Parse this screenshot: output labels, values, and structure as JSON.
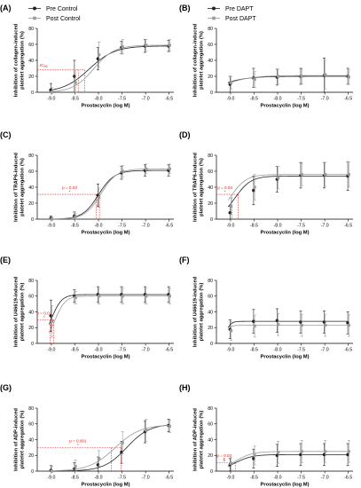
{
  "colors": {
    "pre": "#222222",
    "post": "#9a9a9a",
    "annotation": "#e02020"
  },
  "chart_data": [
    {
      "panel": "(A)",
      "type": "line",
      "xlabel": "Prostacyclin (log M)",
      "ylabel": [
        "Inhibition of collagen-induced",
        "platelet aggregation (%)"
      ],
      "xlim": [
        -9.3,
        -6.4
      ],
      "ylim": [
        0,
        80
      ],
      "xticks": [
        -9.0,
        -8.5,
        -8.0,
        -7.5,
        -7.0,
        -6.5
      ],
      "yticks": [
        0,
        20,
        40,
        60,
        80
      ],
      "legend": [
        "Pre Control",
        "Post Control"
      ],
      "series": [
        {
          "name": "Pre Control",
          "x": [
            -9.0,
            -8.5,
            -8.0,
            -7.5,
            -7.0,
            -6.5
          ],
          "y": [
            3,
            20,
            42,
            56,
            58,
            58
          ],
          "err": [
            8,
            20,
            14,
            8,
            8,
            7
          ],
          "fit": [
            58,
            -8.2,
            1.6
          ]
        },
        {
          "name": "Post Control",
          "x": [
            -9.0,
            -8.5,
            -8.0,
            -7.5,
            -7.0,
            -6.5
          ],
          "y": [
            0,
            12,
            47,
            57,
            59,
            59
          ],
          "err": [
            6,
            16,
            16,
            9,
            7,
            7
          ],
          "fit": [
            59,
            -8.1,
            2.0
          ]
        }
      ],
      "annotations": [
        {
          "type": "ic50",
          "label": "IC50",
          "y": 28,
          "x": [
            -8.43,
            -8.29
          ]
        }
      ]
    },
    {
      "panel": "(B)",
      "type": "line",
      "xlabel": "Prostacyclin (log M)",
      "ylabel": [
        "Inhibition of collagen-induced",
        "platelet aggregation (%)"
      ],
      "xlim": [
        -9.3,
        -6.4
      ],
      "ylim": [
        0,
        80
      ],
      "xticks": [
        -9.0,
        -8.5,
        -8.0,
        -7.5,
        -7.0,
        -6.5
      ],
      "yticks": [
        0,
        20,
        40,
        60,
        80
      ],
      "legend": [
        "Pre DAPT",
        "Post DAPT"
      ],
      "series": [
        {
          "name": "Pre DAPT",
          "x": [
            -9.0,
            -8.5,
            -8.0,
            -7.5,
            -7.0,
            -6.5
          ],
          "y": [
            10,
            18,
            19,
            20,
            21,
            20
          ],
          "err": [
            10,
            12,
            10,
            10,
            22,
            10
          ],
          "fit": [
            20,
            -9.2,
            1.5
          ]
        },
        {
          "name": "Post DAPT",
          "x": [
            -9.0,
            -8.5,
            -8.0,
            -7.5,
            -7.0,
            -6.5
          ],
          "y": [
            12,
            16,
            20,
            20,
            22,
            19
          ],
          "err": [
            8,
            10,
            9,
            9,
            18,
            9
          ],
          "fit": [
            21,
            -9.1,
            1.5
          ]
        }
      ],
      "annotations": []
    },
    {
      "panel": "(C)",
      "type": "line",
      "xlabel": "Prostacyclin (log M)",
      "ylabel": [
        "Inhibition of TRAP6-induced",
        "platelet aggregation (%)"
      ],
      "xlim": [
        -9.3,
        -6.4
      ],
      "ylim": [
        0,
        80
      ],
      "xticks": [
        -9.0,
        -8.5,
        -8.0,
        -7.5,
        -7.0,
        -6.5
      ],
      "yticks": [
        0,
        20,
        40,
        60,
        80
      ],
      "legend": [],
      "series": [
        {
          "name": "Pre Control",
          "x": [
            -9.0,
            -8.5,
            -8.0,
            -7.5,
            -7.0,
            -6.5
          ],
          "y": [
            1,
            4,
            30,
            58,
            61,
            61
          ],
          "err": [
            3,
            5,
            14,
            8,
            7,
            7
          ],
          "fit": [
            61,
            -8.0,
            2.6
          ]
        },
        {
          "name": "Post Control",
          "x": [
            -9.0,
            -8.5,
            -8.0,
            -7.5,
            -7.0,
            -6.5
          ],
          "y": [
            0,
            3,
            27,
            60,
            63,
            63
          ],
          "err": [
            3,
            4,
            12,
            7,
            6,
            6
          ],
          "fit": [
            63,
            -7.95,
            2.6
          ]
        }
      ],
      "annotations": [
        {
          "type": "pvalue",
          "label": "p = 0.03",
          "star": "*",
          "y": 31,
          "x": [
            -8.05,
            -7.98
          ]
        }
      ]
    },
    {
      "panel": "(D)",
      "type": "line",
      "xlabel": "Prostacyclin (log M)",
      "ylabel": [
        "Inhibition of TRAP6-induced",
        "platelet aggregation (%)"
      ],
      "xlim": [
        -9.3,
        -6.4
      ],
      "ylim": [
        0,
        80
      ],
      "xticks": [
        -9.0,
        -8.5,
        -8.0,
        -7.5,
        -7.0,
        -6.5
      ],
      "yticks": [
        0,
        20,
        40,
        60,
        80
      ],
      "legend": [],
      "series": [
        {
          "name": "Pre DAPT",
          "x": [
            -9.0,
            -8.5,
            -8.0,
            -7.5,
            -7.0,
            -6.5
          ],
          "y": [
            8,
            36,
            50,
            55,
            55,
            54
          ],
          "err": [
            8,
            18,
            16,
            16,
            16,
            18
          ],
          "fit": [
            54,
            -8.9,
            2.6
          ]
        },
        {
          "name": "Post DAPT",
          "x": [
            -9.0,
            -8.5,
            -8.0,
            -7.5,
            -7.0,
            -6.5
          ],
          "y": [
            16,
            40,
            52,
            56,
            56,
            56
          ],
          "err": [
            10,
            16,
            14,
            14,
            15,
            16
          ],
          "fit": [
            56,
            -9.0,
            2.6
          ]
        }
      ],
      "annotations": [
        {
          "type": "pvalue",
          "label": "p = 0.04",
          "star": "*",
          "y": 31,
          "x": [
            -8.97,
            -8.84
          ]
        }
      ]
    },
    {
      "panel": "(E)",
      "type": "line",
      "xlabel": "Prostacyclin (log M)",
      "ylabel": [
        "Inhibition of U46619-induced",
        "platelet aggregation (%)"
      ],
      "xlim": [
        -9.3,
        -6.4
      ],
      "ylim": [
        0,
        80
      ],
      "xticks": [
        -9.0,
        -8.5,
        -8.0,
        -7.5,
        -7.0,
        -6.5
      ],
      "yticks": [
        0,
        20,
        40,
        60,
        80
      ],
      "legend": [],
      "series": [
        {
          "name": "Pre Control",
          "x": [
            -9.0,
            -8.5,
            -8.0,
            -7.5,
            -7.0,
            -6.5
          ],
          "y": [
            35,
            60,
            62,
            62,
            62,
            62
          ],
          "err": [
            20,
            8,
            10,
            10,
            10,
            10
          ],
          "fit": [
            62,
            -9.0,
            4.0
          ]
        },
        {
          "name": "Post Control",
          "x": [
            -9.0,
            -8.5,
            -8.0,
            -7.5,
            -7.0,
            -6.5
          ],
          "y": [
            28,
            58,
            60,
            60,
            60,
            60
          ],
          "err": [
            20,
            8,
            10,
            10,
            10,
            10
          ],
          "fit": [
            60,
            -8.92,
            4.0
          ]
        }
      ],
      "annotations": [
        {
          "type": "pvalue",
          "label": "p = 0.01",
          "star": "*",
          "y": 30,
          "x": [
            -9.03,
            -8.95
          ]
        }
      ]
    },
    {
      "panel": "(F)",
      "type": "line",
      "xlabel": "Prostacyclin (log M)",
      "ylabel": [
        "Inhibition of U46619-induced",
        "platelet aggregation (%)"
      ],
      "xlim": [
        -9.3,
        -6.4
      ],
      "ylim": [
        0,
        80
      ],
      "xticks": [
        -9.0,
        -8.5,
        -8.0,
        -7.5,
        -7.0,
        -6.5
      ],
      "yticks": [
        0,
        20,
        40,
        60,
        80
      ],
      "legend": [],
      "series": [
        {
          "name": "Pre DAPT",
          "x": [
            -9.0,
            -8.5,
            -8.0,
            -7.5,
            -7.0,
            -6.5
          ],
          "y": [
            18,
            28,
            29,
            27,
            27,
            26
          ],
          "err": [
            12,
            15,
            15,
            14,
            14,
            14
          ],
          "fit": [
            28,
            -9.1,
            8.0
          ]
        },
        {
          "name": "Post DAPT",
          "x": [
            -9.0,
            -8.5,
            -8.0,
            -7.5,
            -7.0,
            -6.5
          ],
          "y": [
            16,
            22,
            24,
            23,
            23,
            23
          ],
          "err": [
            12,
            14,
            14,
            14,
            14,
            14
          ],
          "fit": [
            23,
            -9.12,
            8.0
          ]
        }
      ],
      "annotations": []
    },
    {
      "panel": "(G)",
      "type": "line",
      "xlabel": "Prostacyclin (log M)",
      "ylabel": [
        "Inhibition of ADP-induced",
        "platelet aggregation (%)"
      ],
      "xlim": [
        -9.3,
        -6.4
      ],
      "ylim": [
        0,
        80
      ],
      "xticks": [
        -9.0,
        -8.5,
        -8.0,
        -7.5,
        -7.0,
        -6.5
      ],
      "yticks": [
        0,
        20,
        40,
        60,
        80
      ],
      "legend": [],
      "series": [
        {
          "name": "Pre Control",
          "x": [
            -9.0,
            -8.5,
            -8.0,
            -7.5,
            -7.0,
            -6.5
          ],
          "y": [
            1,
            3,
            8,
            24,
            50,
            58
          ],
          "err": [
            6,
            8,
            10,
            14,
            14,
            8
          ],
          "fit": [
            60,
            -7.4,
            1.8
          ]
        },
        {
          "name": "Post Control",
          "x": [
            -9.0,
            -8.5,
            -8.0,
            -7.5,
            -7.0,
            -6.5
          ],
          "y": [
            0,
            6,
            16,
            36,
            52,
            57
          ],
          "err": [
            6,
            8,
            10,
            14,
            14,
            8
          ],
          "fit": [
            59,
            -7.65,
            1.6
          ]
        }
      ],
      "annotations": [
        {
          "type": "pvalue",
          "label": "p = 0.001",
          "star": "*",
          "y": 30,
          "x": [
            -7.73,
            -7.52
          ]
        }
      ]
    },
    {
      "panel": "(H)",
      "type": "line",
      "xlabel": "Prostacyclin (log M)",
      "ylabel": [
        "Inhibition of ADP-induced",
        "platelet aggregation (%)"
      ],
      "xlim": [
        -9.3,
        -6.4
      ],
      "ylim": [
        0,
        80
      ],
      "xticks": [
        -9.0,
        -8.5,
        -8.0,
        -7.5,
        -7.0,
        -6.5
      ],
      "yticks": [
        0,
        20,
        40,
        60,
        80
      ],
      "legend": [],
      "series": [
        {
          "name": "Pre DAPT",
          "x": [
            -9.0,
            -8.5,
            -8.0,
            -7.5,
            -7.0,
            -6.5
          ],
          "y": [
            8,
            16,
            20,
            21,
            21,
            21
          ],
          "err": [
            8,
            12,
            14,
            14,
            14,
            14
          ],
          "fit": [
            21,
            -8.9,
            2.4
          ]
        },
        {
          "name": "Post DAPT",
          "x": [
            -9.0,
            -8.5,
            -8.0,
            -7.5,
            -7.0,
            -6.5
          ],
          "y": [
            10,
            20,
            24,
            25,
            25,
            25
          ],
          "err": [
            8,
            12,
            14,
            14,
            14,
            14
          ],
          "fit": [
            25,
            -8.9,
            2.4
          ]
        }
      ],
      "annotations": [
        {
          "type": "pvalue",
          "label": "p = 0.02",
          "star": "$",
          "y": 11,
          "x": [
            -9.0,
            -8.9
          ]
        }
      ]
    }
  ]
}
